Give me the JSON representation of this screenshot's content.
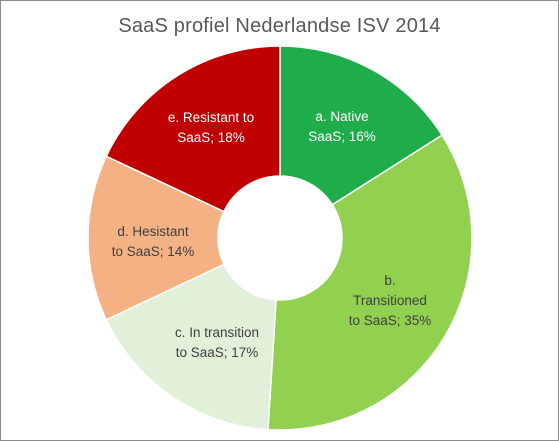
{
  "chart_data": {
    "type": "pie",
    "variant": "donut",
    "title": "SaaS profiel Nederlandse ISV 2014",
    "slices": [
      {
        "label_lines": [
          "a. Native",
          "SaaS; 16%"
        ],
        "category": "a. Native SaaS",
        "value": 16,
        "color": "#1fad4b",
        "text_color": "#ffffff"
      },
      {
        "label_lines": [
          "b.",
          "Transitioned",
          "to SaaS; 35%"
        ],
        "category": "b. Transitioned to SaaS",
        "value": 35,
        "color": "#92d050",
        "text_color": "#404040"
      },
      {
        "label_lines": [
          "c. In transition",
          "to SaaS; 17%"
        ],
        "category": "c. In transition to SaaS",
        "value": 17,
        "color": "#e2efd9",
        "text_color": "#404040"
      },
      {
        "label_lines": [
          "d. Hesistant",
          "to SaaS; 14%"
        ],
        "category": "d. Hesistant to SaaS",
        "value": 14,
        "color": "#f4b183",
        "text_color": "#404040"
      },
      {
        "label_lines": [
          "e. Resistant to",
          "SaaS; 18%"
        ],
        "category": "e. Resistant to SaaS",
        "value": 18,
        "color": "#c00000",
        "text_color": "#ffffff"
      }
    ],
    "start_angle_deg": 0,
    "direction": "clockwise",
    "legend": "none"
  }
}
